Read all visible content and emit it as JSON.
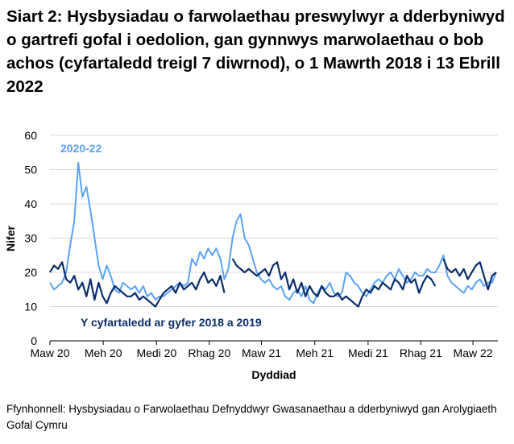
{
  "title": "Siart 2: Hysbysiadau o farwolaethau preswylwyr a dderbyniwyd o gartrefi gofal i oedolion, gan gynnwys marwolaethau o bob achos (cyfartaledd treigl 7 diwrnod), o 1 Mawrth 2018 i 13 Ebrill 2022",
  "source": "Ffynhonnell: Hysbysiadau o Farwolaethau Defnyddwyr Gwasanaethau a dderbyniwyd gan Arolygiaeth Gofal Cymru",
  "chart_data": {
    "type": "line",
    "title": "Siart 2: Hysbysiadau o farwolaethau preswylwyr a dderbyniwyd o gartrefi gofal i oedolion, gan gynnwys marwolaethau o bob achos (cyfartaledd treigl 7 diwrnod), o 1 Mawrth 2018 i 13 Ebrill 2022",
    "xlabel": "Dyddiad",
    "ylabel": "Nifer",
    "ylim": [
      0,
      60
    ],
    "yticks": [
      0,
      10,
      20,
      30,
      40,
      50,
      60
    ],
    "xlim": [
      "2020-03-01",
      "2022-04-13"
    ],
    "xticks": [
      {
        "date": "2020-03-01",
        "label": "Maw 20"
      },
      {
        "date": "2020-06-01",
        "label": "Meh 20"
      },
      {
        "date": "2020-09-01",
        "label": "Medi 20"
      },
      {
        "date": "2020-12-01",
        "label": "Rhag 20"
      },
      {
        "date": "2021-03-01",
        "label": "Maw 21"
      },
      {
        "date": "2021-06-01",
        "label": "Meh 21"
      },
      {
        "date": "2021-09-01",
        "label": "Medi 21"
      },
      {
        "date": "2021-12-01",
        "label": "Rhag 21"
      },
      {
        "date": "2022-03-01",
        "label": "Maw 22"
      }
    ],
    "grid": "horizontal",
    "legend": "inline labels",
    "x": [
      "2020-03-01",
      "2020-03-08",
      "2020-03-15",
      "2020-03-22",
      "2020-03-29",
      "2020-04-05",
      "2020-04-12",
      "2020-04-19",
      "2020-04-26",
      "2020-05-03",
      "2020-05-10",
      "2020-05-17",
      "2020-05-24",
      "2020-05-31",
      "2020-06-07",
      "2020-06-14",
      "2020-06-21",
      "2020-06-28",
      "2020-07-05",
      "2020-07-12",
      "2020-07-19",
      "2020-07-26",
      "2020-08-02",
      "2020-08-09",
      "2020-08-16",
      "2020-08-23",
      "2020-08-30",
      "2020-09-06",
      "2020-09-13",
      "2020-09-20",
      "2020-09-27",
      "2020-10-04",
      "2020-10-11",
      "2020-10-18",
      "2020-10-25",
      "2020-11-01",
      "2020-11-08",
      "2020-11-15",
      "2020-11-22",
      "2020-11-29",
      "2020-12-06",
      "2020-12-13",
      "2020-12-20",
      "2020-12-27",
      "2021-01-03",
      "2021-01-10",
      "2021-01-17",
      "2021-01-24",
      "2021-01-31",
      "2021-02-07",
      "2021-02-14",
      "2021-02-21",
      "2021-02-28",
      "2021-03-07",
      "2021-03-14",
      "2021-03-21",
      "2021-03-28",
      "2021-04-04",
      "2021-04-11",
      "2021-04-18",
      "2021-04-25",
      "2021-05-02",
      "2021-05-09",
      "2021-05-16",
      "2021-05-23",
      "2021-05-30",
      "2021-06-06",
      "2021-06-13",
      "2021-06-20",
      "2021-06-27",
      "2021-07-04",
      "2021-07-11",
      "2021-07-18",
      "2021-07-25",
      "2021-08-01",
      "2021-08-08",
      "2021-08-15",
      "2021-08-22",
      "2021-08-29",
      "2021-09-05",
      "2021-09-12",
      "2021-09-19",
      "2021-09-26",
      "2021-10-03",
      "2021-10-10",
      "2021-10-17",
      "2021-10-24",
      "2021-10-31",
      "2021-11-07",
      "2021-11-14",
      "2021-11-21",
      "2021-11-28",
      "2021-12-05",
      "2021-12-12",
      "2021-12-19",
      "2021-12-26",
      "2022-01-02",
      "2022-01-09",
      "2022-01-16",
      "2022-01-23",
      "2022-01-30",
      "2022-02-06",
      "2022-02-13",
      "2022-02-20",
      "2022-02-27",
      "2022-03-06",
      "2022-03-13",
      "2022-03-20",
      "2022-03-27",
      "2022-04-03",
      "2022-04-10"
    ],
    "series": [
      {
        "name": "2020-22",
        "color": "#5ba3f5",
        "values": [
          17,
          15,
          16,
          17,
          20,
          28,
          35,
          52,
          42,
          45,
          38,
          30,
          22,
          18,
          22,
          19,
          15,
          14,
          17,
          16,
          15,
          16,
          14,
          16,
          13,
          14,
          12,
          13,
          13,
          14,
          15,
          16,
          17,
          16,
          17,
          24,
          22,
          26,
          24,
          27,
          25,
          27,
          24,
          18,
          21,
          30,
          35,
          37,
          30,
          28,
          24,
          20,
          18,
          17,
          18,
          16,
          15,
          16,
          13,
          12,
          14,
          15,
          13,
          16,
          12,
          11,
          14,
          16,
          15,
          17,
          14,
          13,
          14,
          20,
          19,
          17,
          16,
          14,
          13,
          15,
          17,
          18,
          17,
          19,
          20,
          18,
          21,
          19,
          17,
          18,
          20,
          19,
          19,
          21,
          20,
          20,
          22,
          25,
          19,
          17,
          16,
          15,
          14,
          16,
          15,
          17,
          18,
          16,
          17,
          17,
          20
        ]
      },
      {
        "name": "Y cyfartaledd ar gyfer 2018 a 2019",
        "color": "#0b2d6b",
        "values": [
          20,
          22,
          21,
          23,
          18,
          17,
          19,
          15,
          17,
          13,
          18,
          12,
          17,
          13,
          11,
          14,
          16,
          15,
          14,
          13,
          13,
          14,
          12,
          13,
          12,
          11,
          10,
          12,
          14,
          15,
          16,
          14,
          17,
          15,
          16,
          17,
          15,
          18,
          20,
          17,
          18,
          16,
          19,
          14,
          null,
          24,
          22,
          21,
          20,
          21,
          20,
          19,
          20,
          21,
          19,
          22,
          23,
          18,
          20,
          15,
          18,
          14,
          17,
          13,
          16,
          14,
          13,
          16,
          14,
          13,
          13,
          14,
          12,
          13,
          12,
          11,
          10,
          13,
          15,
          14,
          16,
          15,
          17,
          16,
          15,
          18,
          17,
          15,
          19,
          17,
          18,
          14,
          17,
          19,
          18,
          16,
          null,
          24,
          21,
          20,
          21,
          19,
          21,
          18,
          20,
          22,
          23,
          19,
          15,
          19,
          20
        ]
      }
    ]
  }
}
